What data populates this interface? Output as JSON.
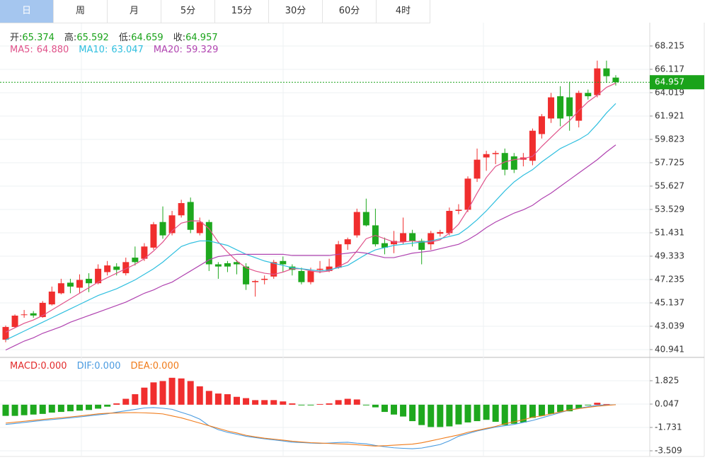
{
  "tabs": [
    "日",
    "周",
    "月",
    "5分",
    "15分",
    "30分",
    "60分",
    "4时"
  ],
  "active_tab": 0,
  "chart_data": [
    {
      "type": "candlestick",
      "ohlc_readout": [
        {
          "name": "开",
          "value": 65.374
        },
        {
          "name": "高",
          "value": 65.592
        },
        {
          "name": "低",
          "value": 64.659
        },
        {
          "name": "收",
          "value": 64.957
        }
      ],
      "readout_color": "#1aa31a",
      "up_color": "#f02e2e",
      "down_color": "#1ea81e",
      "last_price_color": "#1aa31a",
      "grid": true,
      "open": [
        41.83,
        42.97,
        44.05,
        44.2,
        43.86,
        45.0,
        46.0,
        46.95,
        46.5,
        47.3,
        46.9,
        47.9,
        48.4,
        47.8,
        49.2,
        49.1,
        50.1,
        52.4,
        51.4,
        53.0,
        54.2,
        51.4,
        52.4,
        48.6,
        48.7,
        48.8,
        48.4,
        47.0,
        47.2,
        47.5,
        48.9,
        48.4,
        48.0,
        47.0,
        48.1,
        48.0,
        48.3,
        50.4,
        51.2,
        53.3,
        52.1,
        50.5,
        50.4,
        50.6,
        51.4,
        50.7,
        50.4,
        51.35,
        51.4,
        53.4,
        53.5,
        56.3,
        58.2,
        58.5,
        58.6,
        58.3,
        58.0,
        57.9,
        60.3,
        61.7,
        63.7,
        63.6,
        61.5,
        64.0,
        63.8,
        66.2,
        65.374
      ],
      "high": [
        43.1,
        44.1,
        44.5,
        44.4,
        45.3,
        46.6,
        47.3,
        47.3,
        47.7,
        47.8,
        48.6,
        48.9,
        48.7,
        49.2,
        50.2,
        50.5,
        52.4,
        53.8,
        53.4,
        54.4,
        54.6,
        52.8,
        52.6,
        48.8,
        48.9,
        49.0,
        48.7,
        47.2,
        47.6,
        49.0,
        49.3,
        48.6,
        48.3,
        48.3,
        48.9,
        49.1,
        50.7,
        51.0,
        53.6,
        54.5,
        53.6,
        51.0,
        51.6,
        52.8,
        51.7,
        50.9,
        51.6,
        51.7,
        53.7,
        54.0,
        56.5,
        59.0,
        58.8,
        58.8,
        59.0,
        58.6,
        58.6,
        60.8,
        62.1,
        64.0,
        64.6,
        65.0,
        64.2,
        64.3,
        66.9,
        66.9,
        65.592
      ],
      "low": [
        41.6,
        42.9,
        43.8,
        43.8,
        43.8,
        44.9,
        45.9,
        46.0,
        46.0,
        46.1,
        46.8,
        47.6,
        47.6,
        47.6,
        48.5,
        48.9,
        49.9,
        50.9,
        51.2,
        52.8,
        51.4,
        51.2,
        48.0,
        47.3,
        47.9,
        47.7,
        46.3,
        45.7,
        46.8,
        47.3,
        47.9,
        47.6,
        46.8,
        46.8,
        47.8,
        47.9,
        48.2,
        49.9,
        51.0,
        52.0,
        50.2,
        49.5,
        49.6,
        50.4,
        50.2,
        48.6,
        49.9,
        51.1,
        51.2,
        53.1,
        53.3,
        56.0,
        57.0,
        57.6,
        56.6,
        56.8,
        57.4,
        57.5,
        59.9,
        61.3,
        61.0,
        60.6,
        60.9,
        63.4,
        63.6,
        64.9,
        64.659
      ],
      "close": [
        42.97,
        43.99,
        44.1,
        44.0,
        45.14,
        46.15,
        46.9,
        46.6,
        47.2,
        46.9,
        48.2,
        48.5,
        48.1,
        48.8,
        48.8,
        50.2,
        52.2,
        51.2,
        53.0,
        54.1,
        51.7,
        52.4,
        48.6,
        48.4,
        48.4,
        48.6,
        46.8,
        47.1,
        47.3,
        48.8,
        48.6,
        48.1,
        47.0,
        48.0,
        48.2,
        48.4,
        50.4,
        50.85,
        53.3,
        52.1,
        50.4,
        50.1,
        50.7,
        51.4,
        50.7,
        49.9,
        51.4,
        51.5,
        53.4,
        53.5,
        56.3,
        58.0,
        58.5,
        58.6,
        57.1,
        57.1,
        58.2,
        60.6,
        61.9,
        63.6,
        61.7,
        61.9,
        64.0,
        63.7,
        66.2,
        65.5,
        64.957
      ],
      "series": [
        {
          "name": "MA5",
          "color": "#e0528a",
          "readout": 64.88,
          "readout_label": "64.880",
          "values": [
            42.5,
            42.9,
            43.3,
            43.6,
            44.0,
            44.5,
            45.0,
            45.5,
            46.0,
            46.5,
            47.0,
            47.4,
            47.8,
            48.2,
            48.6,
            49.1,
            49.8,
            50.6,
            51.6,
            52.3,
            52.5,
            52.5,
            51.8,
            50.6,
            49.7,
            48.9,
            48.3,
            48.0,
            47.8,
            47.7,
            47.9,
            48.2,
            48.2,
            48.0,
            47.9,
            48.0,
            48.4,
            48.8,
            49.8,
            50.9,
            51.2,
            50.9,
            50.6,
            50.6,
            50.7,
            50.6,
            50.6,
            50.8,
            51.4,
            52.2,
            53.5,
            55.0,
            56.4,
            57.4,
            57.8,
            58.0,
            58.1,
            58.3,
            59.2,
            60.0,
            60.8,
            61.5,
            62.4,
            63.2,
            63.8,
            64.5,
            64.88
          ]
        },
        {
          "name": "MA10",
          "color": "#2fbfdf",
          "readout": 63.047,
          "values": [
            41.8,
            42.2,
            42.6,
            43.0,
            43.4,
            43.8,
            44.2,
            44.6,
            45.0,
            45.4,
            45.8,
            46.1,
            46.4,
            46.8,
            47.2,
            47.7,
            48.2,
            48.8,
            49.5,
            50.2,
            50.5,
            50.7,
            50.7,
            50.5,
            50.3,
            49.9,
            49.5,
            49.2,
            48.9,
            48.7,
            48.5,
            48.3,
            48.2,
            48.1,
            48.0,
            48.1,
            48.3,
            48.5,
            49.0,
            49.5,
            49.9,
            50.1,
            50.3,
            50.4,
            50.5,
            50.6,
            50.7,
            50.9,
            51.1,
            51.3,
            51.9,
            52.6,
            53.4,
            54.3,
            55.2,
            56.0,
            56.6,
            57.1,
            57.8,
            58.4,
            59.0,
            59.4,
            59.8,
            60.3,
            61.2,
            62.2,
            63.047
          ]
        },
        {
          "name": "MA20",
          "color": "#b043b0",
          "readout": 59.329,
          "values": [
            40.9,
            41.3,
            41.7,
            42.0,
            42.4,
            42.7,
            43.0,
            43.4,
            43.7,
            44.0,
            44.3,
            44.6,
            44.9,
            45.2,
            45.6,
            46.0,
            46.3,
            46.7,
            47.0,
            47.5,
            48.0,
            48.5,
            49.0,
            49.3,
            49.4,
            49.5,
            49.5,
            49.5,
            49.5,
            49.5,
            49.5,
            49.4,
            49.4,
            49.4,
            49.4,
            49.4,
            49.5,
            49.6,
            49.7,
            49.6,
            49.4,
            49.2,
            49.2,
            49.4,
            49.6,
            49.7,
            49.8,
            50.0,
            50.2,
            50.4,
            50.8,
            51.3,
            51.9,
            52.4,
            52.8,
            53.2,
            53.5,
            53.9,
            54.5,
            55.0,
            55.6,
            56.2,
            56.8,
            57.4,
            58.0,
            58.7,
            59.329
          ]
        }
      ],
      "ylim": [
        40.43,
        70.12
      ],
      "yticks": [
        40.941,
        43.039,
        45.137,
        47.235,
        49.333,
        51.431,
        53.529,
        55.627,
        57.725,
        59.823,
        61.921,
        64.019,
        66.117,
        68.215
      ]
    },
    {
      "type": "macd",
      "macd_readout": {
        "name": "MACD",
        "value": 0,
        "value_label": "0.000",
        "color": "#e22b2b"
      },
      "up_color": "#f02e2e",
      "down_color": "#1ea81e",
      "grid": true,
      "histogram": [
        -0.85,
        -0.85,
        -0.8,
        -0.75,
        -0.7,
        -0.6,
        -0.55,
        -0.5,
        -0.45,
        -0.4,
        -0.3,
        -0.15,
        0.1,
        0.45,
        0.8,
        1.3,
        1.7,
        1.8,
        2.05,
        2.0,
        1.8,
        1.4,
        1.05,
        0.85,
        0.8,
        0.6,
        0.5,
        0.35,
        0.35,
        0.35,
        0.25,
        0.1,
        -0.05,
        -0.05,
        0.05,
        0.1,
        0.35,
        0.45,
        0.4,
        -0.05,
        -0.2,
        -0.55,
        -0.75,
        -0.9,
        -1.25,
        -1.55,
        -1.7,
        -1.7,
        -1.65,
        -1.5,
        -1.35,
        -1.25,
        -1.15,
        -1.3,
        -1.55,
        -1.45,
        -1.35,
        -1.0,
        -0.85,
        -0.7,
        -0.55,
        -0.5,
        -0.3,
        -0.05,
        0.15,
        0.05,
        0.0
      ],
      "series": [
        {
          "name": "DIF",
          "color": "#4a9be0",
          "readout": 0,
          "readout_label": "0.000",
          "values": [
            -1.5,
            -1.43,
            -1.35,
            -1.27,
            -1.2,
            -1.13,
            -1.07,
            -1.0,
            -0.93,
            -0.85,
            -0.77,
            -0.69,
            -0.57,
            -0.46,
            -0.36,
            -0.25,
            -0.22,
            -0.27,
            -0.35,
            -0.58,
            -0.8,
            -1.1,
            -1.6,
            -1.9,
            -2.1,
            -2.25,
            -2.4,
            -2.5,
            -2.6,
            -2.68,
            -2.76,
            -2.85,
            -2.88,
            -2.92,
            -2.95,
            -2.92,
            -2.88,
            -2.86,
            -2.93,
            -2.98,
            -3.1,
            -3.2,
            -3.28,
            -3.32,
            -3.35,
            -3.3,
            -3.17,
            -3.03,
            -2.75,
            -2.4,
            -2.2,
            -2.0,
            -1.85,
            -1.7,
            -1.6,
            -1.5,
            -1.35,
            -1.2,
            -1.0,
            -0.8,
            -0.6,
            -0.4,
            -0.27,
            -0.15,
            -0.04,
            -0.02,
            0.0
          ]
        },
        {
          "name": "DEA",
          "color": "#f07b1a",
          "readout": 0,
          "readout_label": "0.000",
          "values": [
            -1.4,
            -1.33,
            -1.26,
            -1.19,
            -1.12,
            -1.05,
            -0.99,
            -0.93,
            -0.86,
            -0.78,
            -0.7,
            -0.65,
            -0.63,
            -0.61,
            -0.6,
            -0.62,
            -0.65,
            -0.7,
            -0.85,
            -1.0,
            -1.2,
            -1.4,
            -1.6,
            -1.8,
            -2.0,
            -2.15,
            -2.33,
            -2.45,
            -2.55,
            -2.62,
            -2.7,
            -2.78,
            -2.84,
            -2.89,
            -2.92,
            -2.95,
            -2.98,
            -3.0,
            -3.05,
            -3.1,
            -3.15,
            -3.12,
            -3.08,
            -3.04,
            -3.0,
            -2.9,
            -2.75,
            -2.6,
            -2.45,
            -2.3,
            -2.1,
            -1.95,
            -1.8,
            -1.65,
            -1.45,
            -1.3,
            -1.15,
            -0.95,
            -0.85,
            -0.7,
            -0.55,
            -0.4,
            -0.3,
            -0.2,
            -0.12,
            -0.05,
            0.0
          ]
        }
      ],
      "ylim": [
        -3.94,
        3.495
      ],
      "yticks": [
        1.825,
        0.047,
        -1.731,
        -3.509
      ]
    }
  ]
}
